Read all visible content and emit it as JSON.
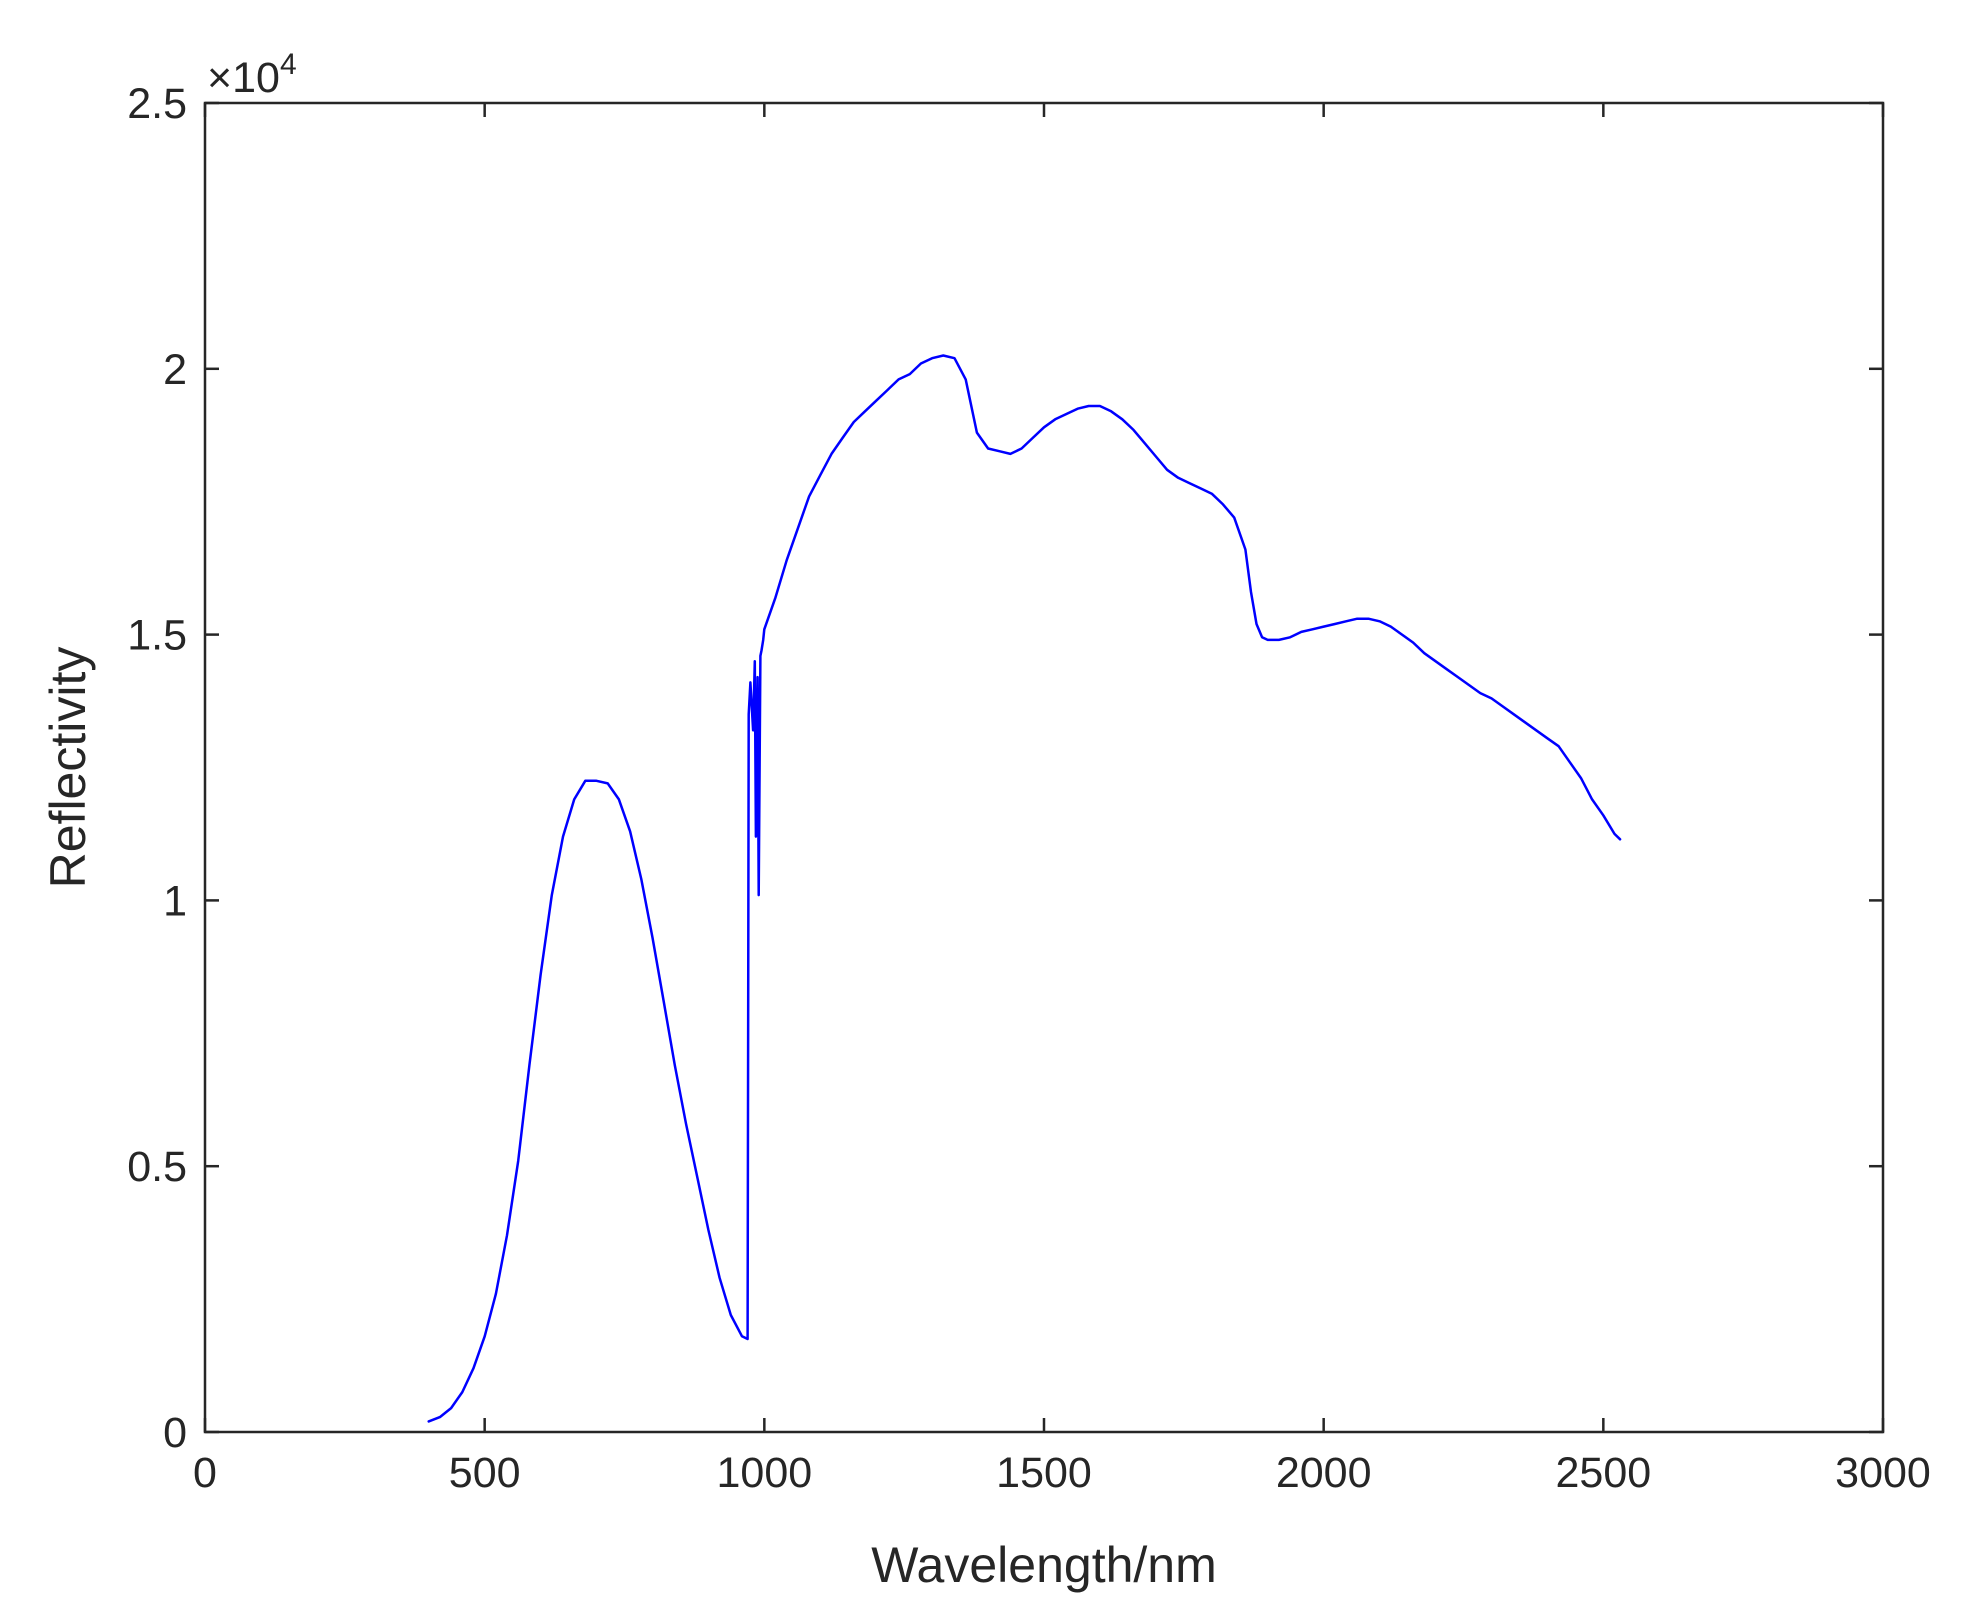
{
  "chart_data": {
    "type": "line",
    "title": "",
    "xlabel": "Wavelength/nm",
    "ylabel": "Reflectivity",
    "xlim": [
      0,
      3000
    ],
    "ylim": [
      0,
      25000
    ],
    "xticks": [
      0,
      500,
      1000,
      1500,
      2000,
      2500,
      3000
    ],
    "xtick_labels": [
      "0",
      "500",
      "1000",
      "1500",
      "2000",
      "2500",
      "3000"
    ],
    "yticks": [
      0,
      5000,
      10000,
      15000,
      20000,
      25000
    ],
    "ytick_labels": [
      "0",
      "0.5",
      "1",
      "1.5",
      "2",
      "2.5"
    ],
    "y_multiplier": {
      "base": "×10",
      "exponent": "4"
    },
    "grid": false,
    "legend": "none",
    "series": [
      {
        "color": "#0000ff",
        "x": [
          400,
          420,
          440,
          460,
          480,
          500,
          520,
          540,
          560,
          580,
          600,
          620,
          640,
          660,
          680,
          700,
          720,
          740,
          760,
          780,
          800,
          820,
          840,
          860,
          880,
          900,
          920,
          940,
          960,
          970,
          972,
          975,
          980,
          983,
          985,
          988,
          990,
          993,
          995,
          998,
          1000,
          1020,
          1040,
          1060,
          1080,
          1100,
          1120,
          1140,
          1160,
          1180,
          1200,
          1220,
          1240,
          1260,
          1280,
          1300,
          1320,
          1340,
          1360,
          1380,
          1400,
          1420,
          1440,
          1460,
          1480,
          1500,
          1520,
          1540,
          1560,
          1580,
          1600,
          1620,
          1640,
          1660,
          1680,
          1700,
          1720,
          1740,
          1760,
          1780,
          1800,
          1820,
          1840,
          1860,
          1870,
          1880,
          1890,
          1900,
          1920,
          1940,
          1960,
          1980,
          2000,
          2020,
          2040,
          2060,
          2080,
          2100,
          2120,
          2140,
          2160,
          2180,
          2200,
          2220,
          2240,
          2260,
          2280,
          2300,
          2320,
          2340,
          2360,
          2380,
          2400,
          2420,
          2440,
          2460,
          2480,
          2500,
          2520,
          2530
        ],
        "y": [
          200,
          280,
          450,
          750,
          1200,
          1800,
          2600,
          3700,
          5100,
          6900,
          8600,
          10100,
          11200,
          11900,
          12250,
          12250,
          12200,
          11900,
          11300,
          10400,
          9300,
          8100,
          6900,
          5800,
          4800,
          3800,
          2900,
          2200,
          1800,
          1750,
          13500,
          14100,
          13200,
          14500,
          11200,
          14200,
          10100,
          14600,
          14700,
          14900,
          15100,
          15700,
          16400,
          17000,
          17600,
          18000,
          18400,
          18700,
          19000,
          19200,
          19400,
          19600,
          19800,
          19900,
          20100,
          20200,
          20250,
          20200,
          19800,
          18800,
          18500,
          18450,
          18400,
          18500,
          18700,
          18900,
          19050,
          19150,
          19250,
          19300,
          19300,
          19200,
          19050,
          18850,
          18600,
          18350,
          18100,
          17950,
          17850,
          17750,
          17650,
          17450,
          17200,
          16600,
          15800,
          15200,
          14950,
          14900,
          14900,
          14950,
          15050,
          15100,
          15150,
          15200,
          15250,
          15300,
          15300,
          15250,
          15150,
          15000,
          14850,
          14650,
          14500,
          14350,
          14200,
          14050,
          13900,
          13800,
          13650,
          13500,
          13350,
          13200,
          13050,
          12900,
          12600,
          12300,
          11900,
          11600,
          11250,
          11150
        ]
      }
    ]
  }
}
